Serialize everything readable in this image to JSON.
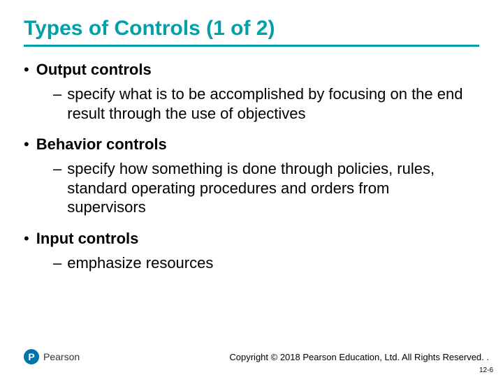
{
  "colors": {
    "title": "#00a0a8",
    "underline": "#00a0a8",
    "logo_bg": "#0073a8",
    "body_text": "#000000",
    "background": "#ffffff"
  },
  "title": "Types of Controls (1 of 2)",
  "bullets": [
    {
      "heading": "Output controls",
      "sub": "specify what is to be accomplished by focusing on the end result through the use of objectives"
    },
    {
      "heading": "Behavior controls",
      "sub": "specify how something is done through policies, rules, standard operating procedures and orders from supervisors"
    },
    {
      "heading": "Input controls",
      "sub": "emphasize resources"
    }
  ],
  "logo": {
    "mark_letter": "P",
    "name": "Pearson"
  },
  "copyright": "Copyright © 2018 Pearson Education, Ltd. All Rights Reserved. .",
  "page_number": "12-6"
}
